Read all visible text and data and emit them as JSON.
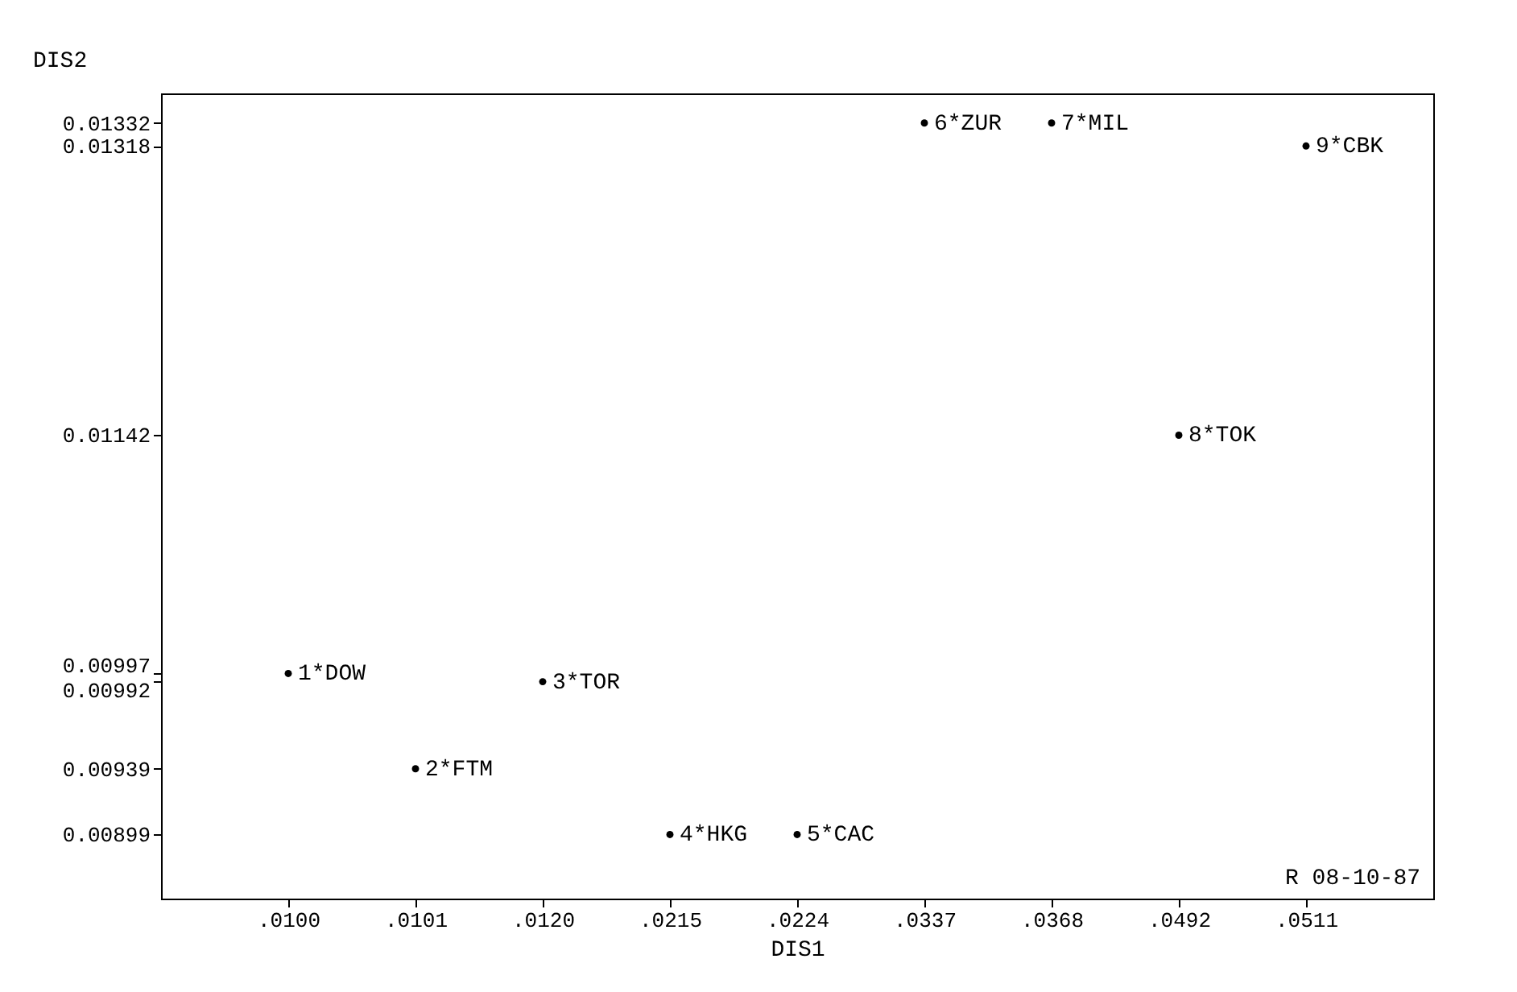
{
  "chart_data": {
    "type": "scatter",
    "xlabel": "DIS1",
    "ylabel": "DIS2",
    "categories": [
      ".0100",
      ".0101",
      ".0120",
      ".0215",
      ".0224",
      ".0337",
      ".0368",
      ".0492",
      ".0511"
    ],
    "ylim": [
      0.0086,
      0.0135
    ],
    "yticks": [
      0.00899,
      0.00939,
      0.00992,
      0.00997,
      0.01142,
      0.01318,
      0.01332
    ],
    "grid": false,
    "legend": false,
    "marker": "circle",
    "series": [
      {
        "name": "1*DOW",
        "color": "#000000",
        "values": [
          0.00997,
          null,
          null,
          null,
          null,
          null,
          null,
          null,
          null
        ]
      },
      {
        "name": "2*FTM",
        "color": "#000000",
        "values": [
          null,
          0.00939,
          null,
          null,
          null,
          null,
          null,
          null,
          null
        ]
      },
      {
        "name": "3*TOR",
        "color": "#000000",
        "values": [
          null,
          null,
          0.00992,
          null,
          null,
          null,
          null,
          null,
          null
        ]
      },
      {
        "name": "4*HKG",
        "color": "#000000",
        "values": [
          null,
          null,
          null,
          0.00899,
          null,
          null,
          null,
          null,
          null
        ]
      },
      {
        "name": "5*CAC",
        "color": "#000000",
        "values": [
          null,
          null,
          null,
          null,
          0.00899,
          null,
          null,
          null,
          null
        ]
      },
      {
        "name": "6*ZUR",
        "color": "#000000",
        "values": [
          null,
          null,
          null,
          null,
          null,
          0.01332,
          null,
          null,
          null
        ]
      },
      {
        "name": "7*MIL",
        "color": "#000000",
        "values": [
          null,
          null,
          null,
          null,
          null,
          null,
          0.01332,
          null,
          null
        ]
      },
      {
        "name": "8*TOK",
        "color": "#000000",
        "values": [
          null,
          null,
          null,
          null,
          null,
          null,
          null,
          0.01142,
          null
        ]
      },
      {
        "name": "9*CBK",
        "color": "#000000",
        "values": [
          null,
          null,
          null,
          null,
          null,
          null,
          null,
          null,
          0.01318
        ]
      }
    ],
    "annotations": [
      "R  08-10-87"
    ]
  }
}
